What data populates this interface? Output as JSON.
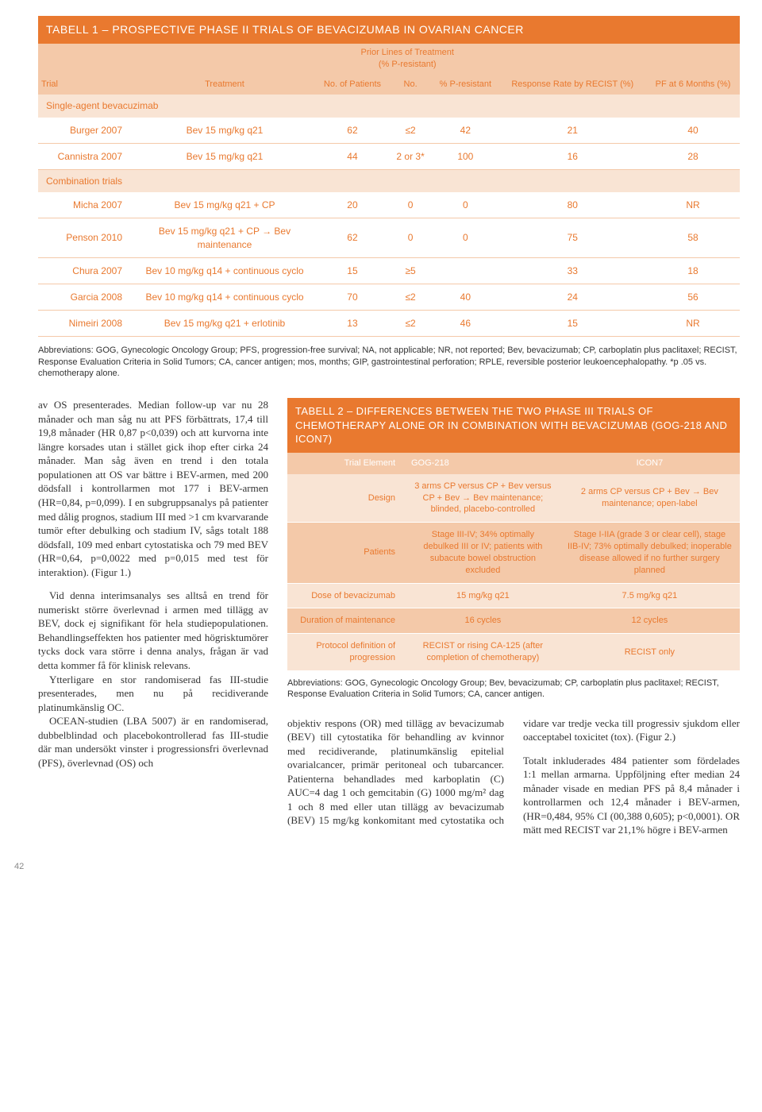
{
  "table1": {
    "title": "TABELL 1 – PROSPECTIVE PHASE II TRIALS OF BEVACIZUMAB IN OVARIAN CANCER",
    "subhead": "Prior Lines of Treatment\n(% P-resistant)",
    "columns": [
      "Trial",
      "Treatment",
      "No. of Patients",
      "No.",
      "% P-resistant",
      "Response Rate by RECIST (%)",
      "PF at 6 Months (%)"
    ],
    "section1": "Single-agent bevacuzimab",
    "section2": "Combination trials",
    "rows1": [
      [
        "Burger 2007",
        "Bev 15 mg/kg q21",
        "62",
        "≤2",
        "42",
        "21",
        "40"
      ],
      [
        "Cannistra 2007",
        "Bev 15 mg/kg q21",
        "44",
        "2 or 3*",
        "100",
        "16",
        "28"
      ]
    ],
    "rows2": [
      [
        "Micha 2007",
        "Bev 15 mg/kg q21 + CP",
        "20",
        "0",
        "0",
        "80",
        "NR"
      ],
      [
        "Penson 2010",
        "Bev 15 mg/kg q21 + CP → Bev maintenance",
        "62",
        "0",
        "0",
        "75",
        "58"
      ],
      [
        "Chura 2007",
        "Bev 10 mg/kg q14 + continuous cyclo",
        "15",
        "≥5",
        "",
        "33",
        "18"
      ],
      [
        "Garcia 2008",
        "Bev 10 mg/kg q14 + continuous cyclo",
        "70",
        "≤2",
        "40",
        "24",
        "56"
      ],
      [
        "Nimeiri 2008",
        "Bev 15 mg/kg q21 + erlotinib",
        "13",
        "≤2",
        "46",
        "15",
        "NR"
      ]
    ],
    "abbr": "Abbreviations: GOG, Gynecologic Oncology Group; PFS, progression-free survival; NA, not applicable; NR, not reported; Bev, bevacizumab; CP, carboplatin plus paclitaxel; RECIST, Response Evaluation Criteria in Solid Tumors; CA, cancer antigen; mos, months; GIP, gastrointestinal perforation; RPLE, reversible posterior leukoencephalopathy. *p .05 vs. chemotherapy alone."
  },
  "leftcol": {
    "p1": "av OS presenterades. Median follow-up var nu 28 månader och man såg nu att PFS förbättrats, 17,4 till 19,8 månader (HR 0,87 p<0,039) och att kurvorna inte längre korsades utan i stället gick ihop efter cirka 24 månader. Man såg även en trend i den totala populationen att OS var bättre i BEV-armen, med 200 dödsfall i kontrollarmen mot 177 i BEV-armen (HR=0,84, p=0,099). I en subgruppsanalys på patienter med dålig prognos, stadium III med >1 cm kvarvarande tumör efter debulking och stadium IV, sågs totalt 188 dödsfall, 109 med enbart cytostatiska och 79 med BEV (HR=0,64, p=0,0022 med p=0,015 med test för interaktion). (Figur 1.)",
    "p2": "Vid denna interimsanalys ses alltså en trend för numeriskt större överlevnad i armen med tillägg av BEV, dock ej signifikant för hela studiepopulationen. Behandlingseffekten hos patienter med högrisktumörer tycks dock vara större i denna analys, frågan är vad detta kommer få för klinisk relevans.",
    "p3": "Ytterligare en stor randomiserad fas III-studie presenterades, men nu på recidiverande platinumkänslig OC.",
    "p4": "OCEAN-studien (LBA 5007) är en randomiserad, dubbelblindad och placebokontrollerad fas III-studie där man undersökt vinster i progressionsfri överlevnad (PFS), överlevnad (OS) och"
  },
  "table2": {
    "title": "TABELL 2 – DIFFERENCES BETWEEN THE TWO PHASE III TRIALS OF CHEMOTHERAPY ALONE OR IN COMBINATION WITH BEVACIZUMAB (GOG-218 AND ICON7)",
    "headers": [
      "Trial Element",
      "GOG-218",
      "ICON7"
    ],
    "rows": [
      [
        "Design",
        "3 arms CP versus CP + Bev versus CP + Bev → Bev maintenance; blinded, placebo-controlled",
        "2 arms CP versus CP + Bev → Bev maintenance; open-label"
      ],
      [
        "Patients",
        "Stage III-IV; 34% optimally debulked III or IV; patients with subacute bowel obstruction excluded",
        "Stage I-IIA (grade 3 or clear cell), stage IIB-IV; 73% optimally debulked; inoperable disease allowed if no further surgery planned"
      ],
      [
        "Dose of bevacizumab",
        "15 mg/kg q21",
        "7.5 mg/kg q21"
      ],
      [
        "Duration of maintenance",
        "16 cycles",
        "12 cycles"
      ],
      [
        "Protocol definition of progression",
        "RECIST or rising CA-125 (after completion of chemotherapy)",
        "RECIST only"
      ]
    ],
    "abbr": "Abbreviations: GOG, Gynecologic Oncology Group; Bev, bevacizumab; CP, carboplatin plus paclitaxel; RECIST, Response Evaluation Criteria in Solid Tumors; CA, cancer antigen."
  },
  "body": {
    "p1": "objektiv respons (OR) med tillägg av bevacizumab (BEV) till cytostatika för behandling av kvinnor med recidiverande, platinumkänslig epitelial ovarialcancer, primär peritoneal och tubarcancer. Patienterna behandlades med karboplatin (C) AUC=4 dag 1 och gemcitabin (G) 1000 mg/m² dag 1 och 8 med eller utan tillägg av bevacizumab (BEV) 15 mg/kg konkomitant med cytostatika och vidare var tredje vecka",
    "p2": "till progressiv sjukdom eller oacceptabel toxicitet (tox). (Figur 2.)",
    "p3": "Totalt inkluderades 484 patienter som fördelades 1:1 mellan armarna. Uppföljning efter median 24 månader visade en median PFS på 8,4 månader i kontrollarmen och 12,4 månader i BEV-armen, (HR=0,484, 95% CI (00,388 0,605); p<0,0001). OR mätt med RECIST var 21,1% högre i BEV-armen"
  },
  "pagenum": "42"
}
